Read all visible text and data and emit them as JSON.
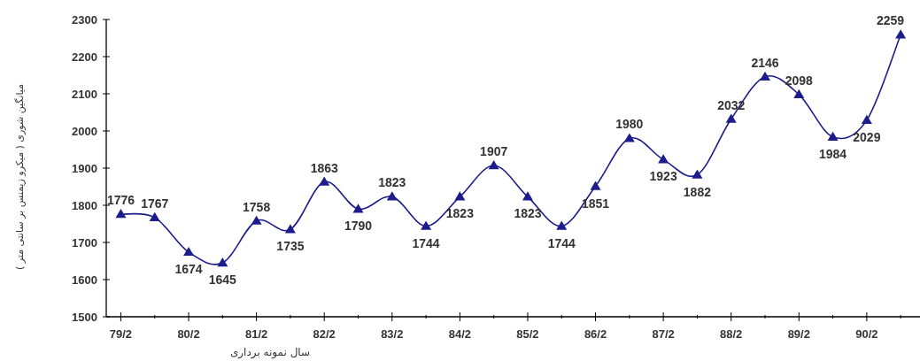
{
  "chart_data": {
    "type": "line",
    "xlabel": "سال نمونه برداری",
    "ylabel": "میانگین شوری ( میکرو زیمنس بر سانتی متر )",
    "categories": [
      "79/2",
      null,
      "80/2",
      null,
      "81/2",
      null,
      "82/2",
      null,
      "83/2",
      null,
      "84/2",
      null,
      "85/2",
      null,
      "86/2",
      null,
      "87/2",
      null,
      "88/2",
      null,
      "89/2",
      null,
      "90/2",
      null
    ],
    "values": [
      1776,
      1767,
      1674,
      1645,
      1758,
      1735,
      1863,
      1790,
      1823,
      1744,
      1823,
      1907,
      1823,
      1744,
      1851,
      1980,
      1923,
      1882,
      2032,
      2146,
      2098,
      1984,
      2029,
      2259
    ],
    "color": "#1c1c8c",
    "marker": "triangle",
    "line_style": "solid",
    "data_labels": true,
    "ylim": [
      1500,
      2300
    ],
    "yticks": [
      1500,
      1600,
      1700,
      1800,
      1900,
      2000,
      2100,
      2200,
      2300
    ]
  }
}
